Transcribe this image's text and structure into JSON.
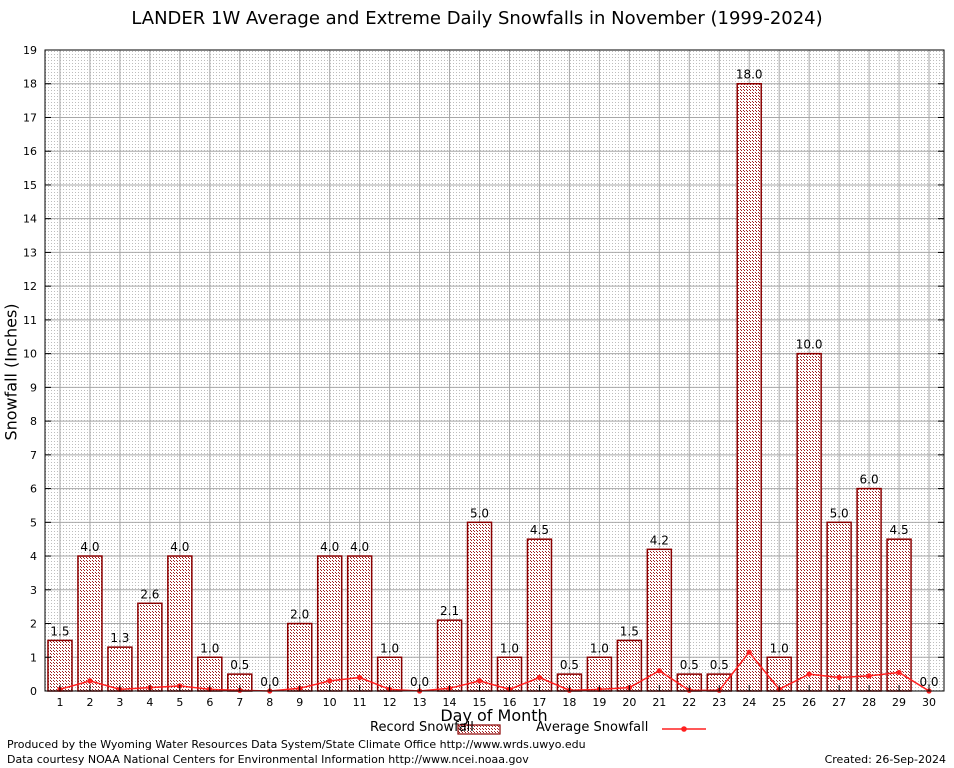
{
  "chart_data": {
    "type": "bar",
    "title": "LANDER 1W Average and Extreme Daily Snowfalls in November (1999-2024)",
    "xlabel": "Day of Month",
    "ylabel": "Snowfall (Inches)",
    "ylim": [
      0,
      19
    ],
    "grid": true,
    "categories": [
      "1",
      "2",
      "3",
      "4",
      "5",
      "6",
      "7",
      "8",
      "9",
      "10",
      "11",
      "12",
      "13",
      "14",
      "15",
      "16",
      "17",
      "18",
      "19",
      "20",
      "21",
      "22",
      "23",
      "24",
      "25",
      "26",
      "27",
      "28",
      "29",
      "30"
    ],
    "series": [
      {
        "name": "Record Snowfall",
        "kind": "bar",
        "values": [
          1.5,
          4.0,
          1.3,
          2.6,
          4.0,
          1.0,
          0.5,
          0.0,
          2.0,
          4.0,
          4.0,
          1.0,
          0.0,
          2.1,
          5.0,
          1.0,
          4.5,
          0.5,
          1.0,
          1.5,
          4.2,
          0.5,
          0.5,
          18.0,
          1.0,
          10.0,
          5.0,
          6.0,
          4.5,
          0.0
        ],
        "labels": [
          "1.5",
          "4.0",
          "1.3",
          "2.6",
          "4.0",
          "1.0",
          "0.5",
          "0.0",
          "2.0",
          "4.0",
          "4.0",
          "1.0",
          "0.0",
          "2.1",
          "5.0",
          "1.0",
          "4.5",
          "0.5",
          "1.0",
          "1.5",
          "4.2",
          "0.5",
          "0.5",
          "18.0",
          "1.0",
          "10.0",
          "5.0",
          "6.0",
          "4.5",
          "0.0"
        ],
        "color": "#8b0000"
      },
      {
        "name": "Average Snowfall",
        "kind": "line",
        "values": [
          0.05,
          0.3,
          0.05,
          0.1,
          0.15,
          0.05,
          0.02,
          0.0,
          0.08,
          0.3,
          0.4,
          0.05,
          0.0,
          0.08,
          0.3,
          0.05,
          0.4,
          0.02,
          0.05,
          0.1,
          0.6,
          0.02,
          0.02,
          1.15,
          0.05,
          0.5,
          0.4,
          0.45,
          0.55,
          0.0
        ],
        "color": "#ff2020"
      }
    ]
  },
  "footer": {
    "produced_by": "Produced by the Wyoming Water Resources Data System/State Climate Office http://www.wrds.uwyo.edu",
    "courtesy": "Data courtesy NOAA National Centers for Environmental Information http://www.ncei.noaa.gov",
    "created": "Created:  26-Sep-2024"
  }
}
